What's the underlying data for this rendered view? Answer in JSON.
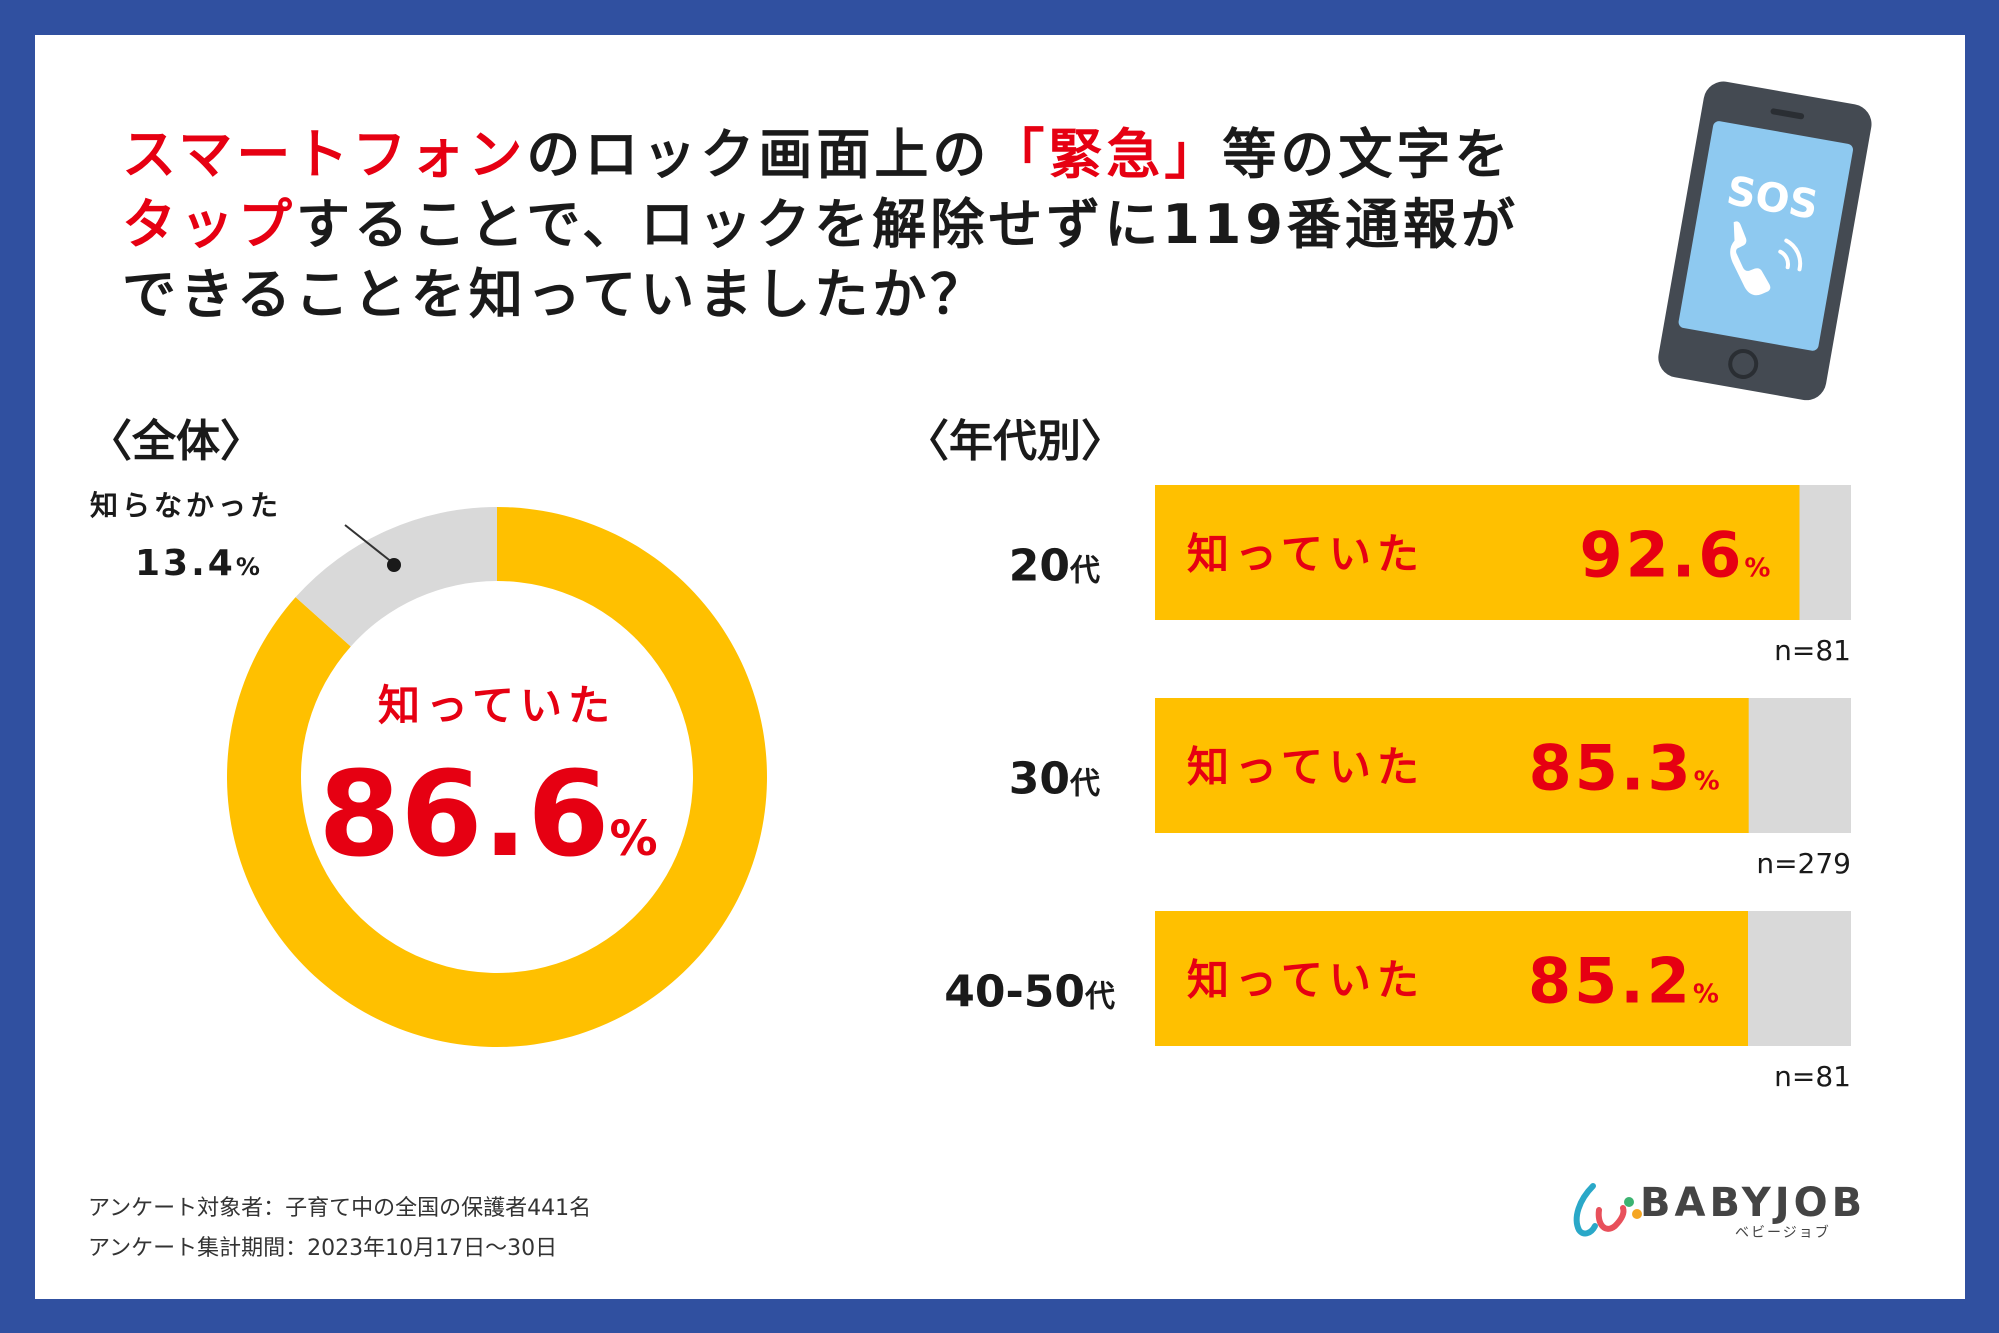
{
  "title": {
    "line1_red": "スマートフォン",
    "line1_a": "のロック画面上の",
    "line1_red2": "「緊急」",
    "line1_b": "等の文字を",
    "line2_red": "タップ",
    "line2_a": "することで、ロックを解除せずに119番通報が",
    "line3": "できることを知っていましたか？"
  },
  "phone": {
    "screen_text": "SOS"
  },
  "colors": {
    "knew": "#ffc000",
    "unknown": "#d9d9d9",
    "accent_red": "#e60012",
    "frame": "#3050a0"
  },
  "chart_data": [
    {
      "type": "pie",
      "title": "〈全体〉",
      "labels": [
        "知っていた",
        "知らなかった"
      ],
      "values": [
        86.6,
        13.4
      ],
      "display": {
        "knew_label": "知っていた",
        "knew_value": "86.6",
        "unknown_label": "知らなかった",
        "unknown_value": "13.4",
        "unit": "%"
      }
    },
    {
      "type": "bar",
      "title": "〈年代別〉",
      "categories": [
        "20代",
        "30代",
        "40-50代"
      ],
      "series": [
        {
          "name": "知っていた",
          "values": [
            92.6,
            85.3,
            85.2
          ]
        }
      ],
      "value_labels": [
        "92.6",
        "85.3",
        "85.2"
      ],
      "unit": "%",
      "samples": [
        "n=81",
        "n=279",
        "n=81"
      ],
      "ylim": [
        0,
        100
      ]
    }
  ],
  "footer": {
    "survey_target": "アンケート対象者：子育て中の全国の保護者441名",
    "survey_period": "アンケート集計期間：2023年10月17日～30日"
  },
  "logo": {
    "name": "BABYJOB",
    "sub": "ベビージョブ"
  }
}
